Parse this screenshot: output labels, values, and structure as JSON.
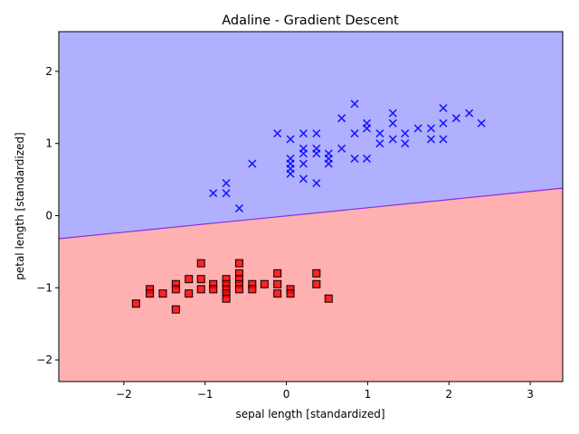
{
  "chart_data": {
    "type": "scatter",
    "title": "Adaline - Gradient Descent",
    "xlabel": "sepal length [standardized]",
    "ylabel": "petal length [standardized]",
    "xlim": [
      -2.8,
      3.4
    ],
    "ylim": [
      -2.3,
      2.55
    ],
    "xticks": [
      -2,
      -1,
      0,
      1,
      2,
      3
    ],
    "yticks": [
      -2,
      -1,
      0,
      1,
      2
    ],
    "xtick_labels": [
      "−2",
      "−1",
      "0",
      "1",
      "2",
      "3"
    ],
    "ytick_labels": [
      "−2",
      "−1",
      "0",
      "1",
      "2"
    ],
    "grid": false,
    "legend": "none",
    "decision_boundary": {
      "line": [
        [
          -2.8,
          -0.32
        ],
        [
          3.4,
          0.38
        ]
      ],
      "upper_region_color": "#b0b0ff",
      "lower_region_color": "#ffb0b0",
      "boundary_color": "#8a2be2"
    },
    "series": [
      {
        "marker": "square",
        "color": "#ff0000",
        "points": [
          [
            -1.85,
            -1.22
          ],
          [
            -1.68,
            -1.02
          ],
          [
            -1.68,
            -1.08
          ],
          [
            -1.52,
            -1.08
          ],
          [
            -1.36,
            -0.95
          ],
          [
            -1.36,
            -1.02
          ],
          [
            -1.36,
            -1.3
          ],
          [
            -1.2,
            -0.88
          ],
          [
            -1.2,
            -1.08
          ],
          [
            -1.05,
            -0.66
          ],
          [
            -1.05,
            -0.88
          ],
          [
            -1.05,
            -1.02
          ],
          [
            -0.9,
            -0.95
          ],
          [
            -0.9,
            -1.02
          ],
          [
            -0.74,
            -0.88
          ],
          [
            -0.74,
            -0.95
          ],
          [
            -0.74,
            -1.02
          ],
          [
            -0.74,
            -1.08
          ],
          [
            -0.74,
            -1.15
          ],
          [
            -0.58,
            -0.66
          ],
          [
            -0.58,
            -0.8
          ],
          [
            -0.58,
            -0.88
          ],
          [
            -0.58,
            -0.95
          ],
          [
            -0.58,
            -1.02
          ],
          [
            -0.42,
            -0.95
          ],
          [
            -0.42,
            -1.02
          ],
          [
            -0.27,
            -0.95
          ],
          [
            -0.11,
            -0.8
          ],
          [
            -0.11,
            -0.95
          ],
          [
            -0.11,
            -1.08
          ],
          [
            0.05,
            -1.02
          ],
          [
            0.05,
            -1.08
          ],
          [
            0.37,
            -0.8
          ],
          [
            0.37,
            -0.95
          ],
          [
            0.52,
            -1.15
          ]
        ]
      },
      {
        "marker": "x",
        "color": "#0000ff",
        "points": [
          [
            -0.9,
            0.31
          ],
          [
            -0.74,
            0.31
          ],
          [
            -0.74,
            0.45
          ],
          [
            -0.58,
            0.1
          ],
          [
            -0.42,
            0.72
          ],
          [
            -0.11,
            1.14
          ],
          [
            0.05,
            1.06
          ],
          [
            0.05,
            0.79
          ],
          [
            0.05,
            0.72
          ],
          [
            0.05,
            0.65
          ],
          [
            0.05,
            0.58
          ],
          [
            0.21,
            1.14
          ],
          [
            0.21,
            0.93
          ],
          [
            0.21,
            0.86
          ],
          [
            0.21,
            0.72
          ],
          [
            0.21,
            0.51
          ],
          [
            0.37,
            1.14
          ],
          [
            0.37,
            0.93
          ],
          [
            0.37,
            0.86
          ],
          [
            0.37,
            0.45
          ],
          [
            0.52,
            0.86
          ],
          [
            0.52,
            0.79
          ],
          [
            0.52,
            0.72
          ],
          [
            0.68,
            1.35
          ],
          [
            0.68,
            0.93
          ],
          [
            0.84,
            1.55
          ],
          [
            0.84,
            1.14
          ],
          [
            0.84,
            0.79
          ],
          [
            0.99,
            1.28
          ],
          [
            0.99,
            1.21
          ],
          [
            0.99,
            0.79
          ],
          [
            1.15,
            1.14
          ],
          [
            1.15,
            1.0
          ],
          [
            1.31,
            1.42
          ],
          [
            1.31,
            1.28
          ],
          [
            1.31,
            1.06
          ],
          [
            1.46,
            1.14
          ],
          [
            1.46,
            1.0
          ],
          [
            1.62,
            1.21
          ],
          [
            1.78,
            1.21
          ],
          [
            1.78,
            1.06
          ],
          [
            1.93,
            1.49
          ],
          [
            1.93,
            1.28
          ],
          [
            1.93,
            1.06
          ],
          [
            2.09,
            1.35
          ],
          [
            2.25,
            1.42
          ],
          [
            2.4,
            1.28
          ]
        ]
      }
    ]
  }
}
